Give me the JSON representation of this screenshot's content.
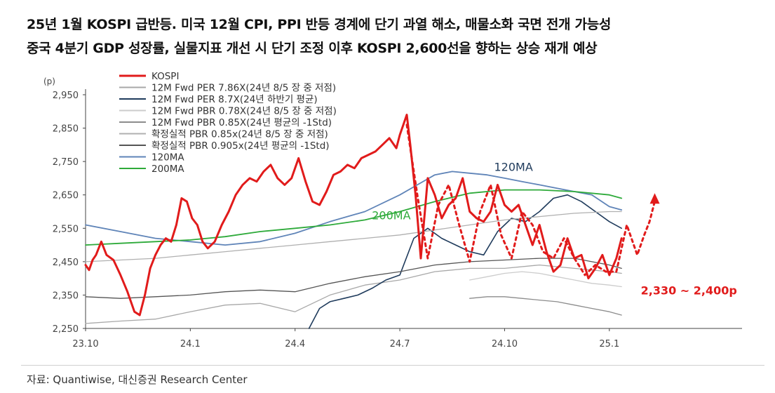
{
  "title_line1": "25년 1월 KOSPI 급반등. 미국 12월 CPI, PPI 반등 경계에 단기 과열 해소, 매물소화 국면 전개 가능성",
  "title_line2": "중국 4분기 GDP 성장률, 실물지표 개선 시 단기 조정 이후 KOSPI 2,600선을 향하는 상승 재개 예상",
  "source": "자료: Quantiwise, 대신증권 Research Center",
  "chart_data": {
    "type": "line",
    "y_unit": "(p)",
    "ylim": [
      2250,
      2950
    ],
    "y_ticks": [
      2950,
      2850,
      2750,
      2650,
      2550,
      2450,
      2350,
      2250
    ],
    "y_tick_labels": [
      "2,950",
      "2,850",
      "2,750",
      "2,650",
      "2,550",
      "2,450",
      "2,350",
      "2,250"
    ],
    "x_tick_labels": [
      "23.10",
      "24.1",
      "24.4",
      "24.7",
      "24.10",
      "25.1"
    ],
    "x_tick_month_index": [
      0,
      3,
      6,
      9,
      12,
      15
    ],
    "xlim_month_index": [
      0,
      18.8
    ],
    "grid": false,
    "legend_position": "top-left",
    "annotations": [
      {
        "text": "120MA",
        "x": 11.7,
        "y": 2722,
        "color": "#1f3b5c"
      },
      {
        "text": "200MA",
        "x": 8.2,
        "y": 2577,
        "color": "#2eaa3a"
      },
      {
        "text": "2,330 ~ 2,400p",
        "x": 15.9,
        "y": 2352,
        "color": "#e11b1b"
      }
    ],
    "series": [
      {
        "name": "KOSPI",
        "color": "#e11b1b",
        "width": 3,
        "dash": false,
        "x": [
          0,
          0.1,
          0.2,
          0.3,
          0.45,
          0.6,
          0.8,
          1.0,
          1.2,
          1.4,
          1.55,
          1.7,
          1.85,
          2.0,
          2.15,
          2.3,
          2.45,
          2.6,
          2.75,
          2.9,
          3.05,
          3.2,
          3.35,
          3.5,
          3.7,
          3.9,
          4.1,
          4.3,
          4.5,
          4.7,
          4.9,
          5.1,
          5.3,
          5.5,
          5.7,
          5.9,
          6.1,
          6.3,
          6.5,
          6.7,
          6.9,
          7.1,
          7.3,
          7.5,
          7.7,
          7.9,
          8.1,
          8.3,
          8.5,
          8.7,
          8.9,
          9.0,
          9.1,
          9.2,
          9.3,
          9.45,
          9.6,
          9.8,
          10.0,
          10.2,
          10.4,
          10.6,
          10.8,
          11.0,
          11.2,
          11.4,
          11.6,
          11.8,
          12.0,
          12.2,
          12.4,
          12.6,
          12.8,
          13.0,
          13.2,
          13.4,
          13.6,
          13.8,
          14.0,
          14.2,
          14.4,
          14.6,
          14.8,
          15.0,
          15.2,
          15.35
        ],
        "y": [
          2440,
          2425,
          2455,
          2470,
          2510,
          2470,
          2455,
          2410,
          2360,
          2300,
          2290,
          2350,
          2430,
          2470,
          2500,
          2520,
          2510,
          2560,
          2640,
          2630,
          2580,
          2560,
          2510,
          2490,
          2510,
          2560,
          2600,
          2650,
          2680,
          2700,
          2690,
          2720,
          2740,
          2700,
          2680,
          2700,
          2760,
          2690,
          2630,
          2620,
          2660,
          2710,
          2720,
          2740,
          2730,
          2760,
          2770,
          2780,
          2800,
          2820,
          2790,
          2830,
          2860,
          2890,
          2800,
          2650,
          2460,
          2700,
          2650,
          2580,
          2620,
          2640,
          2700,
          2600,
          2580,
          2570,
          2600,
          2680,
          2620,
          2600,
          2620,
          2560,
          2500,
          2560,
          2480,
          2420,
          2440,
          2520,
          2460,
          2470,
          2400,
          2430,
          2470,
          2410,
          2460,
          2520
        ]
      },
      {
        "name": "12M Fwd PER 7.86X(24년 8/5 장 중 저점)",
        "color": "#a8a8a8",
        "width": 1.3,
        "dash": false,
        "x": [
          0,
          1,
          2,
          3,
          4,
          5,
          6,
          7,
          8,
          9,
          10,
          11,
          12,
          13,
          14,
          15,
          15.35
        ],
        "y": [
          2265,
          2272,
          2278,
          2300,
          2320,
          2325,
          2300,
          2350,
          2380,
          2395,
          2420,
          2430,
          2430,
          2440,
          2430,
          2420,
          2415
        ]
      },
      {
        "name": "12M Fwd PER 8.7X(24년 하반기 평균)",
        "color": "#1f3b5c",
        "width": 1.6,
        "dash": false,
        "x": [
          6.4,
          6.7,
          7.0,
          7.4,
          7.8,
          8.2,
          8.6,
          9.0,
          9.4,
          9.8,
          10.2,
          10.6,
          11.0,
          11.4,
          11.8,
          12.2,
          12.6,
          13.0,
          13.4,
          13.8,
          14.2,
          14.6,
          15.0,
          15.35
        ],
        "y": [
          2250,
          2310,
          2330,
          2340,
          2350,
          2370,
          2395,
          2410,
          2520,
          2550,
          2520,
          2500,
          2480,
          2470,
          2540,
          2580,
          2570,
          2600,
          2640,
          2650,
          2630,
          2600,
          2570,
          2550
        ]
      },
      {
        "name": "12M Fwd PBR 0.78X(24년 8/5 장 중 저점)",
        "color": "#cccccc",
        "width": 1.3,
        "dash": false,
        "x": [
          11,
          11.5,
          12,
          12.5,
          13,
          13.5,
          14,
          14.5,
          15,
          15.35
        ],
        "y": [
          2395,
          2405,
          2415,
          2420,
          2415,
          2405,
          2395,
          2385,
          2380,
          2375
        ]
      },
      {
        "name": "12M Fwd PBR 0.85X(24년 평균의 -1Std)",
        "color": "#8c8c8c",
        "width": 1.3,
        "dash": false,
        "x": [
          11,
          11.5,
          12,
          12.5,
          13,
          13.5,
          14,
          14.5,
          15,
          15.35
        ],
        "y": [
          2340,
          2345,
          2345,
          2340,
          2335,
          2330,
          2320,
          2310,
          2300,
          2290
        ]
      },
      {
        "name": "확정실적 PBR 0.85x(24년 8/5 장 중 저점)",
        "color": "#b0b0b0",
        "width": 1.3,
        "dash": false,
        "x": [
          0,
          1,
          2,
          3,
          4,
          5,
          6,
          7,
          8,
          9,
          10,
          11,
          12,
          13,
          14,
          15,
          15.35
        ],
        "y": [
          2450,
          2455,
          2460,
          2470,
          2480,
          2490,
          2500,
          2510,
          2520,
          2530,
          2545,
          2560,
          2575,
          2585,
          2595,
          2600,
          2600
        ]
      },
      {
        "name": "확정실적 PBR 0.905x(24년 평균의 -1Std)",
        "color": "#555555",
        "width": 1.3,
        "dash": false,
        "x": [
          0,
          1,
          2,
          3,
          4,
          5,
          6,
          7,
          8,
          9,
          10,
          11,
          12,
          13,
          14,
          15,
          15.35
        ],
        "y": [
          2345,
          2340,
          2345,
          2350,
          2360,
          2365,
          2360,
          2385,
          2405,
          2420,
          2440,
          2450,
          2455,
          2460,
          2460,
          2440,
          2430
        ]
      },
      {
        "name": "120MA",
        "color": "#5f84b8",
        "width": 1.8,
        "dash": false,
        "x": [
          0,
          1,
          2,
          3,
          4,
          5,
          6,
          7,
          8,
          9,
          9.5,
          10,
          10.5,
          11,
          11.5,
          12,
          12.5,
          13,
          13.5,
          14,
          14.5,
          15,
          15.35
        ],
        "y": [
          2560,
          2540,
          2520,
          2510,
          2500,
          2510,
          2535,
          2570,
          2600,
          2650,
          2680,
          2710,
          2720,
          2715,
          2710,
          2700,
          2690,
          2680,
          2670,
          2660,
          2650,
          2615,
          2605
        ]
      },
      {
        "name": "200MA",
        "color": "#2eaa3a",
        "width": 1.8,
        "dash": false,
        "x": [
          0,
          1,
          2,
          3,
          4,
          5,
          6,
          7,
          8,
          9,
          10,
          11,
          12,
          13,
          14,
          15,
          15.35
        ],
        "y": [
          2500,
          2505,
          2510,
          2515,
          2525,
          2540,
          2550,
          2560,
          2575,
          2600,
          2630,
          2655,
          2665,
          2665,
          2660,
          2650,
          2640
        ]
      },
      {
        "name": "",
        "color": "#e11b1b",
        "width": 3,
        "dash": true,
        "x": [
          9.2,
          9.5,
          9.8,
          10.1,
          10.4,
          10.7,
          11.0,
          11.3,
          11.6,
          11.9,
          12.2,
          12.5,
          12.8,
          13.1,
          13.4,
          13.7,
          14.0,
          14.3,
          14.6,
          14.9,
          15.2,
          15.5,
          15.8,
          16.0,
          16.15,
          16.3
        ],
        "y": [
          2860,
          2650,
          2460,
          2620,
          2680,
          2560,
          2450,
          2600,
          2680,
          2530,
          2460,
          2600,
          2560,
          2480,
          2460,
          2520,
          2460,
          2410,
          2440,
          2420,
          2420,
          2560,
          2470,
          2530,
          2570,
          2630
        ]
      }
    ]
  }
}
